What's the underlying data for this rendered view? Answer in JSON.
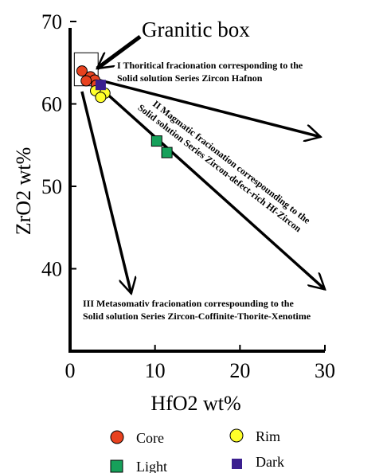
{
  "chart_data": {
    "type": "scatter",
    "xlabel": "HfO2 wt%",
    "ylabel": "ZrO2 wt%",
    "xlim": [
      0,
      30
    ],
    "ylim": [
      30,
      70
    ],
    "x_ticks": [
      "0",
      "10",
      "20",
      "30"
    ],
    "y_ticks": [
      "40",
      "50",
      "60",
      "70"
    ],
    "grid": false,
    "legend_position": "bottom",
    "series": [
      {
        "name": "Core",
        "marker": "circle",
        "color": "#e8421f",
        "points": [
          [
            1.4,
            64.0
          ],
          [
            2.4,
            63.3
          ],
          [
            2.9,
            62.9
          ],
          [
            1.9,
            62.8
          ],
          [
            3.1,
            62.3
          ]
        ]
      },
      {
        "name": "Rim",
        "marker": "circle",
        "color": "#ffff2a",
        "points": [
          [
            3.0,
            61.6
          ],
          [
            4.1,
            61.3
          ],
          [
            3.6,
            60.8
          ]
        ]
      },
      {
        "name": "Light",
        "marker": "square",
        "color": "#16a05a",
        "points": [
          [
            10.2,
            55.5
          ],
          [
            11.4,
            54.1
          ]
        ]
      },
      {
        "name": "Dark",
        "marker": "square",
        "color": "#3b1f8f",
        "points": [
          [
            3.6,
            62.3
          ]
        ]
      }
    ],
    "annotations": {
      "granitic_box": "Granitic box",
      "trend_1_line1": "I Thoritical fracionation corresponding to the",
      "trend_1_line2": "Solid solution Series Zircon Hafnon",
      "trend_2_line1": "II Magmatic fracionation correspounding to the",
      "trend_2_line2": "Solid solution Series Zircon-defect-rich Hf-Zircon",
      "trend_3_line1": "III Metasomativ fracionation correspounding to the",
      "trend_3_line2": "Solid solution Series Zircon-Coffinite-Thorite-Xenotime"
    },
    "trend_arrows": [
      {
        "from": [
          3.0,
          63.0
        ],
        "to": [
          29.5,
          56.0
        ]
      },
      {
        "from": [
          3.5,
          62.0
        ],
        "to": [
          30.0,
          37.5
        ]
      },
      {
        "from": [
          1.4,
          61.5
        ],
        "to": [
          7.2,
          37.0
        ]
      }
    ],
    "granitic_box_range": {
      "x": [
        0.5,
        3.3
      ],
      "y": [
        62.2,
        66.2
      ]
    }
  }
}
